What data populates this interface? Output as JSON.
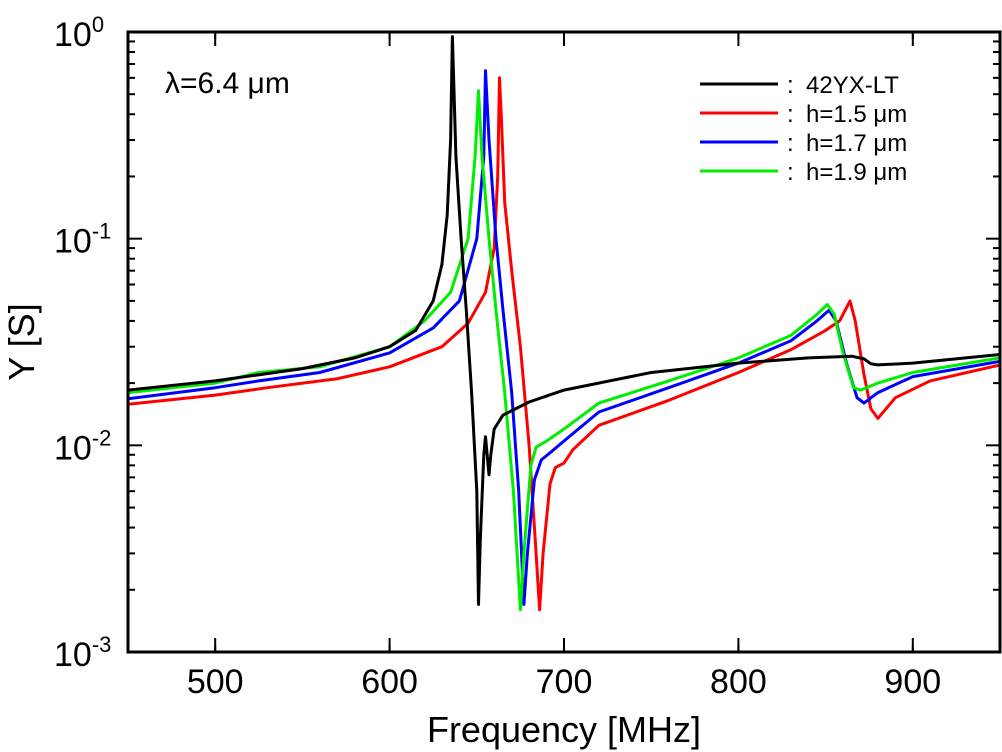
{
  "chart_data": {
    "type": "line",
    "xlabel": "Frequency  [MHz]",
    "ylabel": "Y [S]",
    "annotation": "λ=6.4  μm",
    "xlim": [
      450,
      950
    ],
    "ylim": [
      0.001,
      1
    ],
    "y_scale": "log",
    "x_ticks": [
      "500",
      "600",
      "700",
      "800",
      "900"
    ],
    "y_ticks": [
      {
        "base": "10",
        "exp": "0"
      },
      {
        "base": "10",
        "exp": "-1"
      },
      {
        "base": "10",
        "exp": "-2"
      },
      {
        "base": "10",
        "exp": "-3"
      }
    ],
    "legend_position": "top-right",
    "series": [
      {
        "name": "42YX-LT",
        "color": "#000000",
        "points": [
          [
            450,
            0.0185
          ],
          [
            500,
            0.0205
          ],
          [
            550,
            0.0235
          ],
          [
            580,
            0.0265
          ],
          [
            600,
            0.03
          ],
          [
            615,
            0.036
          ],
          [
            625,
            0.05
          ],
          [
            630,
            0.075
          ],
          [
            633,
            0.13
          ],
          [
            635,
            0.3
          ],
          [
            636,
            0.95
          ],
          [
            637,
            0.5
          ],
          [
            638,
            0.25
          ],
          [
            641,
            0.1
          ],
          [
            644,
            0.045
          ],
          [
            647,
            0.018
          ],
          [
            650,
            0.006
          ],
          [
            651,
            0.0017
          ],
          [
            652,
            0.0035
          ],
          [
            654,
            0.009
          ],
          [
            655,
            0.011
          ],
          [
            657,
            0.0072
          ],
          [
            658,
            0.009
          ],
          [
            660,
            0.012
          ],
          [
            665,
            0.014
          ],
          [
            680,
            0.0162
          ],
          [
            700,
            0.0185
          ],
          [
            750,
            0.0225
          ],
          [
            800,
            0.025
          ],
          [
            840,
            0.0265
          ],
          [
            865,
            0.027
          ],
          [
            872,
            0.0262
          ],
          [
            876,
            0.0248
          ],
          [
            880,
            0.0245
          ],
          [
            900,
            0.025
          ],
          [
            950,
            0.0275
          ]
        ]
      },
      {
        "name": "h=1.5  μm",
        "color": "#ff0000",
        "points": [
          [
            450,
            0.0158
          ],
          [
            500,
            0.0175
          ],
          [
            530,
            0.019
          ],
          [
            570,
            0.021
          ],
          [
            600,
            0.024
          ],
          [
            630,
            0.03
          ],
          [
            645,
            0.039
          ],
          [
            655,
            0.055
          ],
          [
            660,
            0.09
          ],
          [
            662,
            0.2
          ],
          [
            663,
            0.6
          ],
          [
            664,
            0.4
          ],
          [
            666,
            0.15
          ],
          [
            670,
            0.07
          ],
          [
            675,
            0.03
          ],
          [
            680,
            0.01
          ],
          [
            684,
            0.003
          ],
          [
            686,
            0.0016
          ],
          [
            688,
            0.003
          ],
          [
            692,
            0.0065
          ],
          [
            695,
            0.0078
          ],
          [
            700,
            0.0082
          ],
          [
            705,
            0.0095
          ],
          [
            720,
            0.0125
          ],
          [
            760,
            0.0165
          ],
          [
            800,
            0.0225
          ],
          [
            830,
            0.029
          ],
          [
            850,
            0.036
          ],
          [
            858,
            0.04
          ],
          [
            864,
            0.05
          ],
          [
            867,
            0.04
          ],
          [
            872,
            0.022
          ],
          [
            876,
            0.015
          ],
          [
            880,
            0.0135
          ],
          [
            890,
            0.017
          ],
          [
            910,
            0.0205
          ],
          [
            950,
            0.0245
          ]
        ]
      },
      {
        "name": "h=1.7  μm",
        "color": "#0000ff",
        "points": [
          [
            450,
            0.0168
          ],
          [
            500,
            0.019
          ],
          [
            525,
            0.0205
          ],
          [
            560,
            0.0225
          ],
          [
            600,
            0.028
          ],
          [
            625,
            0.037
          ],
          [
            640,
            0.05
          ],
          [
            650,
            0.1
          ],
          [
            654,
            0.25
          ],
          [
            655,
            0.65
          ],
          [
            657,
            0.3
          ],
          [
            661,
            0.1
          ],
          [
            665,
            0.045
          ],
          [
            670,
            0.018
          ],
          [
            674,
            0.006
          ],
          [
            677,
            0.0017
          ],
          [
            679,
            0.003
          ],
          [
            683,
            0.0068
          ],
          [
            687,
            0.0085
          ],
          [
            692,
            0.0092
          ],
          [
            700,
            0.0105
          ],
          [
            720,
            0.0145
          ],
          [
            760,
            0.019
          ],
          [
            800,
            0.025
          ],
          [
            830,
            0.032
          ],
          [
            845,
            0.04
          ],
          [
            852,
            0.045
          ],
          [
            856,
            0.04
          ],
          [
            862,
            0.025
          ],
          [
            868,
            0.017
          ],
          [
            872,
            0.016
          ],
          [
            880,
            0.018
          ],
          [
            900,
            0.0215
          ],
          [
            950,
            0.0255
          ]
        ]
      },
      {
        "name": "h=1.9  μm",
        "color": "#00ee00",
        "points": [
          [
            450,
            0.018
          ],
          [
            500,
            0.02
          ],
          [
            525,
            0.0225
          ],
          [
            560,
            0.024
          ],
          [
            600,
            0.03
          ],
          [
            620,
            0.04
          ],
          [
            635,
            0.055
          ],
          [
            645,
            0.1
          ],
          [
            649,
            0.25
          ],
          [
            651,
            0.52
          ],
          [
            653,
            0.25
          ],
          [
            657,
            0.1
          ],
          [
            661,
            0.045
          ],
          [
            666,
            0.018
          ],
          [
            671,
            0.006
          ],
          [
            675,
            0.0016
          ],
          [
            677,
            0.003
          ],
          [
            681,
            0.008
          ],
          [
            684,
            0.0098
          ],
          [
            690,
            0.0105
          ],
          [
            700,
            0.012
          ],
          [
            720,
            0.016
          ],
          [
            760,
            0.0205
          ],
          [
            800,
            0.0265
          ],
          [
            830,
            0.034
          ],
          [
            845,
            0.043
          ],
          [
            851,
            0.048
          ],
          [
            855,
            0.043
          ],
          [
            860,
            0.028
          ],
          [
            866,
            0.019
          ],
          [
            870,
            0.0185
          ],
          [
            880,
            0.02
          ],
          [
            900,
            0.0225
          ],
          [
            950,
            0.0265
          ]
        ]
      }
    ]
  }
}
